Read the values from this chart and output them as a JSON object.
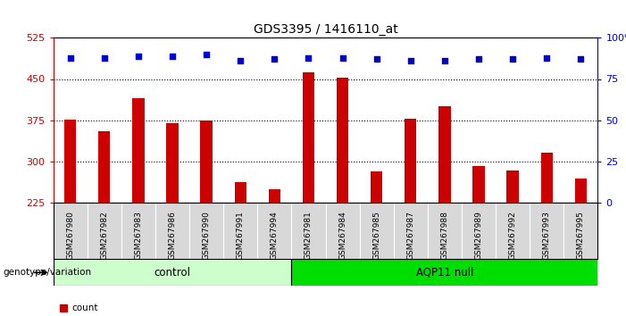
{
  "title": "GDS3395 / 1416110_at",
  "samples": [
    "GSM267980",
    "GSM267982",
    "GSM267983",
    "GSM267986",
    "GSM267990",
    "GSM267991",
    "GSM267994",
    "GSM267981",
    "GSM267984",
    "GSM267985",
    "GSM267987",
    "GSM267988",
    "GSM267989",
    "GSM267992",
    "GSM267993",
    "GSM267995"
  ],
  "counts": [
    376,
    355,
    415,
    370,
    375,
    262,
    248,
    462,
    453,
    282,
    378,
    400,
    291,
    283,
    315,
    268
  ],
  "percentile_ranks": [
    88,
    88,
    89,
    89,
    90,
    86,
    87,
    88,
    88,
    87,
    86,
    86,
    87,
    87,
    88,
    87
  ],
  "control_count": 7,
  "aqp11_count": 9,
  "ylim_left": [
    225,
    525
  ],
  "yticks_left": [
    225,
    300,
    375,
    450,
    525
  ],
  "ylim_right": [
    0,
    100
  ],
  "yticks_right": [
    0,
    25,
    50,
    75,
    100
  ],
  "bar_color": "#CC0000",
  "dot_color": "#0000CC",
  "bar_width": 0.35,
  "control_bg": "#ccffcc",
  "aqp11_bg": "#00dd00",
  "plot_bg": "#ffffff",
  "xticklabel_bg": "#d8d8d8",
  "label_control": "control",
  "label_aqp11": "AQP11 null",
  "xlabel_genotype": "genotype/variation"
}
